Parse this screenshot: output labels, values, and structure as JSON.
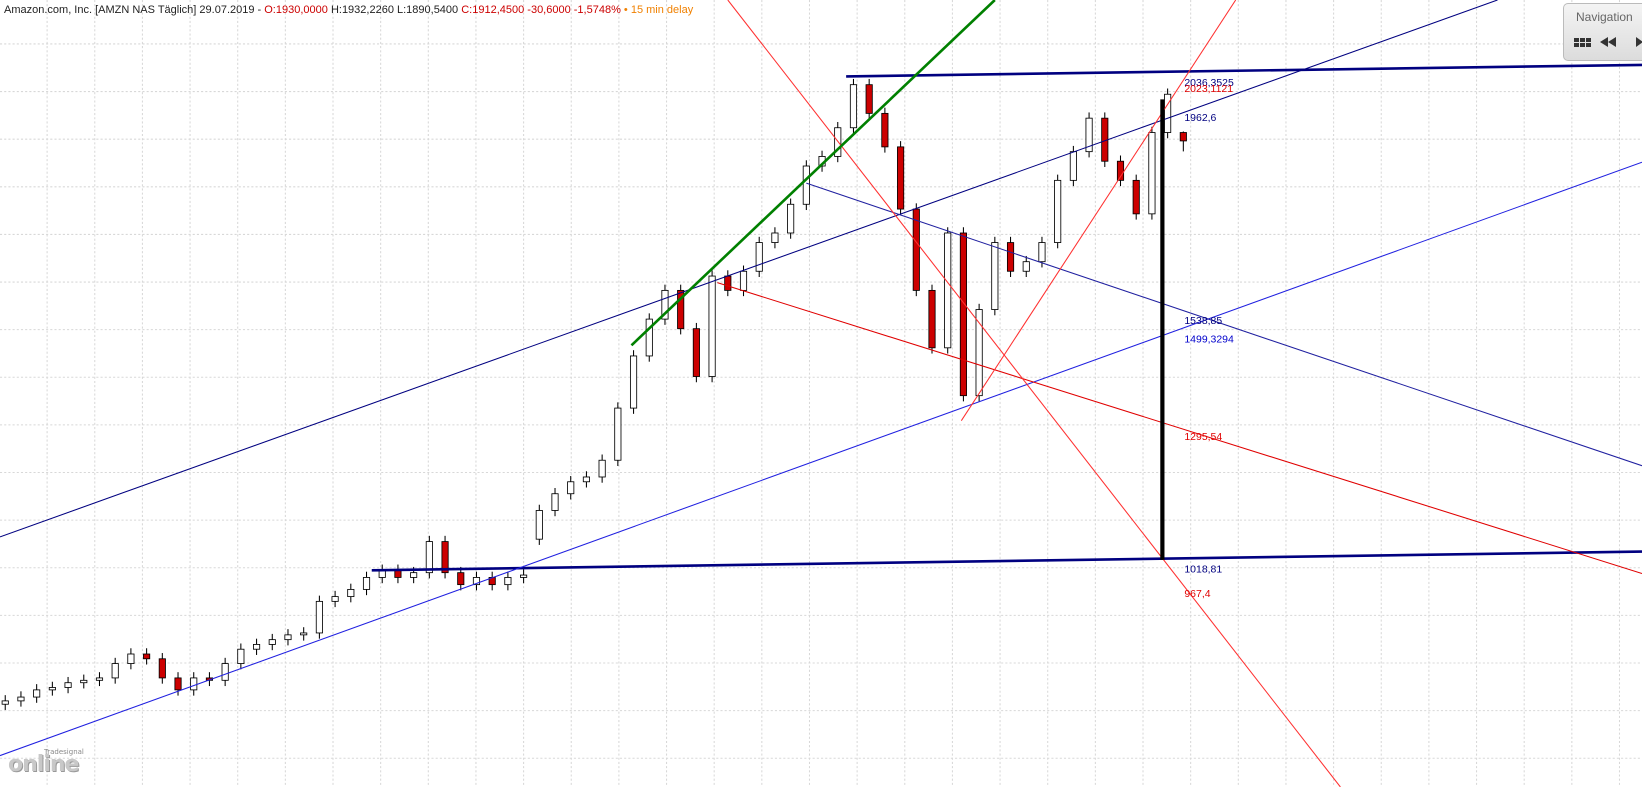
{
  "header": {
    "symbol": "Amazon.com, Inc. [AMZN NAS Täglich] 29.07.2019 -",
    "open": "O:1930,0000",
    "high_low": "H:1932,2260 L:1890,5400",
    "close": "C:1912,4500 -30,6000 -1,5748%",
    "delay": "• 15 min delay"
  },
  "navigation": "Navigation",
  "logo": {
    "brand": "Tradesignal",
    "text": "online"
  },
  "chart_data": {
    "type": "candlestick",
    "up_color": "#ffffff",
    "down_color": "#cc0000",
    "ylim": [
      562,
      2207
    ],
    "grid": true,
    "open": [
      735,
      742,
      750,
      765,
      770,
      780,
      785,
      790,
      820,
      840,
      830,
      790,
      765,
      790,
      785,
      820,
      850,
      860,
      870,
      880,
      884,
      950,
      960,
      975,
      1000,
      1015,
      1000,
      1010,
      1075,
      1010,
      985,
      1000,
      985,
      1000,
      1080,
      1140,
      1175,
      1200,
      1210,
      1245,
      1354,
      1463,
      1540,
      1600,
      1520,
      1420,
      1630,
      1600,
      1640,
      1700,
      1720,
      1780,
      1860,
      1880,
      1940,
      2030,
      1970,
      1900,
      1770,
      1600,
      1480,
      1720,
      1380,
      1560,
      1700,
      1640,
      1660,
      1700,
      1830,
      1890,
      1960,
      1870,
      1830,
      1760,
      1930,
      1930
    ],
    "high": [
      754,
      762,
      777,
      782,
      792,
      797,
      802,
      832,
      852,
      852,
      842,
      802,
      802,
      802,
      832,
      862,
      872,
      882,
      892,
      896,
      962,
      972,
      987,
      1012,
      1027,
      1027,
      1022,
      1087,
      1087,
      1022,
      1012,
      1012,
      1012,
      1017,
      1152,
      1187,
      1212,
      1222,
      1257,
      1366,
      1475,
      1552,
      1612,
      1612,
      1532,
      1642,
      1642,
      1652,
      1712,
      1732,
      1792,
      1872,
      1892,
      1952,
      2042,
      2042,
      1982,
      1912,
      1782,
      1612,
      1732,
      1732,
      1572,
      1712,
      1712,
      1672,
      1712,
      1842,
      1902,
      1972,
      1972,
      1882,
      1842,
      1942,
      2022,
      1932.226
    ],
    "low": [
      723,
      730,
      738,
      753,
      758,
      768,
      773,
      778,
      808,
      818,
      778,
      753,
      753,
      773,
      773,
      808,
      838,
      848,
      858,
      868,
      872,
      938,
      948,
      963,
      988,
      988,
      988,
      998,
      998,
      973,
      973,
      973,
      973,
      988,
      1068,
      1128,
      1163,
      1188,
      1198,
      1233,
      1342,
      1451,
      1528,
      1508,
      1408,
      1408,
      1588,
      1588,
      1628,
      1688,
      1708,
      1768,
      1848,
      1868,
      1928,
      1958,
      1888,
      1758,
      1588,
      1468,
      1468,
      1368,
      1368,
      1548,
      1628,
      1628,
      1648,
      1688,
      1818,
      1878,
      1858,
      1818,
      1748,
      1748,
      1918,
      1890.54
    ],
    "close": [
      742,
      750,
      765,
      770,
      780,
      785,
      790,
      820,
      840,
      830,
      790,
      765,
      790,
      785,
      820,
      850,
      860,
      870,
      880,
      884,
      950,
      960,
      975,
      1000,
      1015,
      1000,
      1010,
      1075,
      1010,
      985,
      1000,
      985,
      1000,
      1005,
      1140,
      1175,
      1200,
      1210,
      1245,
      1354,
      1463,
      1540,
      1600,
      1520,
      1420,
      1630,
      1600,
      1640,
      1700,
      1720,
      1780,
      1860,
      1880,
      1940,
      2030,
      1970,
      1900,
      1770,
      1600,
      1480,
      1720,
      1380,
      1560,
      1700,
      1640,
      1660,
      1700,
      1830,
      1890,
      1960,
      1870,
      1830,
      1760,
      1930,
      2010,
      1912.45
    ],
    "levels": [
      {
        "value": 2036.3525,
        "label": "2036,3525",
        "color": "#000080"
      },
      {
        "value": 2023.1121,
        "label": "2023,1121",
        "color": "#e00000"
      },
      {
        "value": 1962.6,
        "label": "1962,6",
        "color": "#000080"
      },
      {
        "value": 1538.85,
        "label": "1538,85",
        "color": "#000080"
      },
      {
        "value": 1499.3294,
        "label": "1499,3294",
        "color": "#0000cc"
      },
      {
        "value": 1295.54,
        "label": "1295,54",
        "color": "#e00000"
      },
      {
        "value": 1018.81,
        "label": "1018,81",
        "color": "#000080"
      },
      {
        "value": 967.4,
        "label": "967,4",
        "color": "#e00000"
      }
    ]
  }
}
